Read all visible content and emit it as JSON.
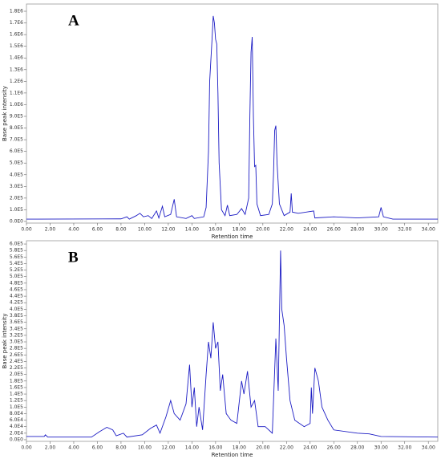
{
  "chart_data": [
    {
      "type": "line",
      "title": "A",
      "x_label": "Retention time",
      "y_label": "Base peak intensity",
      "color": "#1c1cc4",
      "x": [
        0,
        1,
        8,
        8.5,
        8.7,
        9.3,
        9.6,
        9.9,
        10.3,
        10.6,
        11.0,
        11.2,
        11.5,
        11.7,
        12.2,
        12.5,
        12.7,
        13.5,
        14.0,
        14.2,
        15.0,
        15.2,
        15.4,
        15.5,
        15.7,
        15.8,
        15.9,
        16.0,
        16.1,
        16.2,
        16.3,
        16.5,
        16.8,
        17.0,
        17.2,
        17.8,
        18.2,
        18.5,
        18.8,
        18.9,
        19.0,
        19.1,
        19.2,
        19.3,
        19.4,
        19.5,
        19.8,
        20.5,
        20.8,
        20.9,
        21.0,
        21.1,
        21.2,
        21.4,
        21.8,
        22.3,
        22.4,
        22.5,
        23,
        24.3,
        24.4,
        26,
        28,
        29.8,
        30.0,
        30.2,
        31,
        34.8
      ],
      "values": [
        20000,
        20000,
        22000,
        40000,
        20000,
        50000,
        70000,
        40000,
        50000,
        25000,
        90000,
        30000,
        130000,
        40000,
        60000,
        190000,
        40000,
        25000,
        50000,
        25000,
        40000,
        120000,
        600000,
        1200000,
        1560000,
        1760000,
        1700000,
        1560000,
        1520000,
        1100000,
        500000,
        100000,
        50000,
        140000,
        50000,
        60000,
        110000,
        60000,
        200000,
        900000,
        1450000,
        1580000,
        900000,
        470000,
        480000,
        150000,
        50000,
        60000,
        150000,
        400000,
        780000,
        820000,
        500000,
        150000,
        50000,
        80000,
        240000,
        80000,
        70000,
        90000,
        30000,
        40000,
        30000,
        40000,
        120000,
        40000,
        20000,
        20000
      ],
      "xlim": [
        0,
        34.8
      ],
      "ylim": [
        -14000,
        1862000
      ],
      "xticks": [
        {
          "value": 0,
          "label": "0.00"
        },
        {
          "value": 2,
          "label": "2.00"
        },
        {
          "value": 4,
          "label": "4.00"
        },
        {
          "value": 6,
          "label": "6.00"
        },
        {
          "value": 8,
          "label": "8.00"
        },
        {
          "value": 10,
          "label": "10.00"
        },
        {
          "value": 12,
          "label": "12.00"
        },
        {
          "value": 14,
          "label": "14.00"
        },
        {
          "value": 16,
          "label": "16.00"
        },
        {
          "value": 18,
          "label": "18.00"
        },
        {
          "value": 20,
          "label": "20.00"
        },
        {
          "value": 22,
          "label": "22.00"
        },
        {
          "value": 24,
          "label": "24.00"
        },
        {
          "value": 26,
          "label": "26.00"
        },
        {
          "value": 28,
          "label": "28.00"
        },
        {
          "value": 30,
          "label": "30.00"
        },
        {
          "value": 32,
          "label": "32.00"
        },
        {
          "value": 34,
          "label": "34.00"
        }
      ],
      "yticks": [
        {
          "value": 0,
          "label": "0.0E0"
        },
        {
          "value": 100000,
          "label": "1.0E5"
        },
        {
          "value": 200000,
          "label": "2.0E5"
        },
        {
          "value": 300000,
          "label": "3.0E5"
        },
        {
          "value": 400000,
          "label": "4.0E5"
        },
        {
          "value": 500000,
          "label": "5.0E5"
        },
        {
          "value": 600000,
          "label": "6.0E5"
        },
        {
          "value": 700000,
          "label": "7.0E5"
        },
        {
          "value": 800000,
          "label": "8.0E5"
        },
        {
          "value": 900000,
          "label": "9.0E5"
        },
        {
          "value": 1000000,
          "label": "1.0E6"
        },
        {
          "value": 1100000,
          "label": "1.1E6"
        },
        {
          "value": 1200000,
          "label": "1.2E6"
        },
        {
          "value": 1300000,
          "label": "1.3E6"
        },
        {
          "value": 1400000,
          "label": "1.4E6"
        },
        {
          "value": 1500000,
          "label": "1.5E6"
        },
        {
          "value": 1600000,
          "label": "1.6E6"
        },
        {
          "value": 1700000,
          "label": "1.7E6"
        },
        {
          "value": 1800000,
          "label": "1.8E6"
        }
      ]
    },
    {
      "type": "line",
      "title": "B",
      "x_label": "Retention time",
      "y_label": "Base peak intensity",
      "color": "#1c1cc4",
      "x": [
        0,
        1.5,
        1.6,
        1.8,
        5.5,
        6.2,
        6.8,
        7.3,
        7.6,
        8.2,
        8.5,
        9.8,
        10.5,
        11.0,
        11.3,
        11.8,
        12.2,
        12.5,
        13.0,
        13.5,
        13.8,
        14.0,
        14.2,
        14.4,
        14.6,
        14.9,
        15.2,
        15.4,
        15.6,
        15.8,
        16.0,
        16.2,
        16.4,
        16.6,
        16.9,
        17.3,
        17.8,
        18.2,
        18.4,
        18.7,
        19.0,
        19.3,
        19.6,
        20.2,
        20.8,
        21.1,
        21.3,
        21.5,
        21.6,
        21.8,
        22.0,
        22.3,
        22.7,
        23.5,
        24.0,
        24.1,
        24.2,
        24.4,
        24.7,
        25.0,
        25.5,
        26,
        28,
        29,
        30,
        34.8
      ],
      "values": [
        10000,
        10000,
        15000,
        8000,
        8000,
        25000,
        38000,
        30000,
        12000,
        20000,
        8000,
        15000,
        35000,
        45000,
        20000,
        70000,
        120000,
        80000,
        60000,
        110000,
        230000,
        100000,
        160000,
        40000,
        100000,
        30000,
        200000,
        300000,
        250000,
        360000,
        280000,
        300000,
        150000,
        200000,
        80000,
        60000,
        50000,
        180000,
        140000,
        210000,
        100000,
        120000,
        40000,
        40000,
        20000,
        310000,
        150000,
        580000,
        400000,
        350000,
        250000,
        120000,
        60000,
        40000,
        50000,
        160000,
        80000,
        220000,
        180000,
        100000,
        60000,
        30000,
        20000,
        18000,
        10000,
        8000
      ],
      "xlim": [
        0,
        34.8
      ],
      "ylim": [
        -5000,
        610000
      ],
      "xticks": [
        {
          "value": 0,
          "label": "0.00"
        },
        {
          "value": 2,
          "label": "2.00"
        },
        {
          "value": 4,
          "label": "4.00"
        },
        {
          "value": 6,
          "label": "6.00"
        },
        {
          "value": 8,
          "label": "8.00"
        },
        {
          "value": 10,
          "label": "10.00"
        },
        {
          "value": 12,
          "label": "12.00"
        },
        {
          "value": 14,
          "label": "14.00"
        },
        {
          "value": 16,
          "label": "16.00"
        },
        {
          "value": 18,
          "label": "18.00"
        },
        {
          "value": 20,
          "label": "20.00"
        },
        {
          "value": 22,
          "label": "22.00"
        },
        {
          "value": 24,
          "label": "24.00"
        },
        {
          "value": 26,
          "label": "26.00"
        },
        {
          "value": 28,
          "label": "28.00"
        },
        {
          "value": 30,
          "label": "30.00"
        },
        {
          "value": 32,
          "label": "32.00"
        },
        {
          "value": 34,
          "label": "34.00"
        }
      ],
      "yticks": [
        {
          "value": 0,
          "label": "0.0E0"
        },
        {
          "value": 20000,
          "label": "2.0E4"
        },
        {
          "value": 40000,
          "label": "4.0E4"
        },
        {
          "value": 60000,
          "label": "6.0E4"
        },
        {
          "value": 80000,
          "label": "8.0E4"
        },
        {
          "value": 100000,
          "label": "1.0E5"
        },
        {
          "value": 120000,
          "label": "1.2E5"
        },
        {
          "value": 140000,
          "label": "1.4E5"
        },
        {
          "value": 160000,
          "label": "1.6E5"
        },
        {
          "value": 180000,
          "label": "1.8E5"
        },
        {
          "value": 200000,
          "label": "2.0E5"
        },
        {
          "value": 220000,
          "label": "2.2E5"
        },
        {
          "value": 240000,
          "label": "2.4E5"
        },
        {
          "value": 260000,
          "label": "2.6E5"
        },
        {
          "value": 280000,
          "label": "2.8E5"
        },
        {
          "value": 300000,
          "label": "3.0E5"
        },
        {
          "value": 320000,
          "label": "3.2E5"
        },
        {
          "value": 340000,
          "label": "3.4E5"
        },
        {
          "value": 360000,
          "label": "3.6E5"
        },
        {
          "value": 380000,
          "label": "3.8E5"
        },
        {
          "value": 400000,
          "label": "4.0E5"
        },
        {
          "value": 420000,
          "label": "4.2E5"
        },
        {
          "value": 440000,
          "label": "4.4E5"
        },
        {
          "value": 460000,
          "label": "4.6E5"
        },
        {
          "value": 480000,
          "label": "4.8E5"
        },
        {
          "value": 500000,
          "label": "5.0E5"
        },
        {
          "value": 520000,
          "label": "5.2E5"
        },
        {
          "value": 540000,
          "label": "5.4E5"
        },
        {
          "value": 560000,
          "label": "5.6E5"
        },
        {
          "value": 580000,
          "label": "5.8E5"
        },
        {
          "value": 600000,
          "label": "6.0E5"
        }
      ]
    }
  ]
}
